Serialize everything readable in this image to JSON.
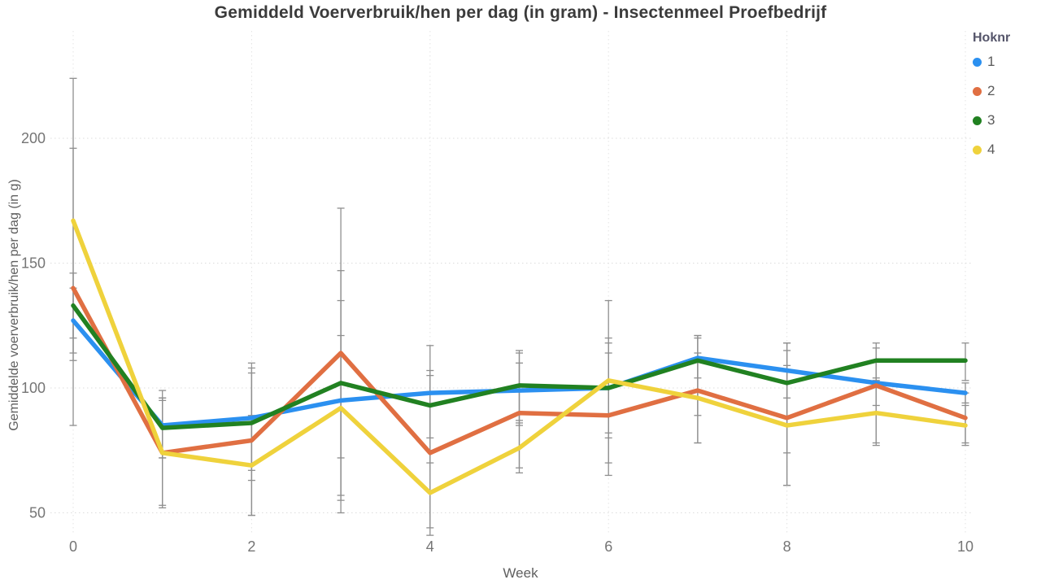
{
  "chart_data": {
    "type": "line",
    "title": "Gemiddeld Voerverbruik/hen per dag (in gram) - Insectenmeel Proefbedrijf",
    "xlabel": "Week",
    "ylabel": "Gemiddelde voerverbruik/hen per dag (in g)",
    "x": [
      0,
      1,
      2,
      3,
      4,
      5,
      6,
      7,
      8,
      9,
      10
    ],
    "x_ticks": [
      0,
      2,
      4,
      6,
      8,
      10
    ],
    "y_ticks": [
      50,
      100,
      150,
      200
    ],
    "ylim": [
      40,
      244
    ],
    "xlim": [
      0,
      10
    ],
    "grid": "dotted light-gray, horizontal at y ticks and vertical at even weeks",
    "error_bars": true,
    "error_bar_color": "#8f8f8f",
    "legend": {
      "title": "Hoknr",
      "position": "top-right"
    },
    "series": [
      {
        "name": "1",
        "color": "#2B90F0",
        "values": [
          127,
          85,
          88,
          95,
          98,
          99,
          100,
          112,
          107,
          102,
          98
        ],
        "error_low": [
          114,
          72,
          67,
          72,
          80,
          85,
          82,
          104,
          96,
          93,
          94
        ],
        "error_high": [
          140,
          99,
          106,
          121,
          117,
          114,
          118,
          121,
          118,
          111,
          102
        ]
      },
      {
        "name": "2",
        "color": "#E06F42",
        "values": [
          140,
          74,
          79,
          114,
          74,
          90,
          89,
          99,
          88,
          101,
          88
        ],
        "error_low": [
          85,
          53,
          49,
          50,
          44,
          68,
          65,
          78,
          61,
          78,
          78
        ],
        "error_high": [
          196,
          95,
          108,
          172,
          105,
          110,
          114,
          120,
          115,
          116,
          98
        ]
      },
      {
        "name": "3",
        "color": "#218121",
        "values": [
          133,
          84,
          86,
          102,
          93,
          101,
          100,
          111,
          102,
          111,
          111
        ],
        "error_low": [
          120,
          72,
          63,
          57,
          70,
          87,
          80,
          89,
          74,
          104,
          103
        ],
        "error_high": [
          146,
          96,
          110,
          147,
          107,
          115,
          120,
          121,
          118,
          118,
          118
        ]
      },
      {
        "name": "4",
        "color": "#EFD23C",
        "values": [
          167,
          74,
          69,
          92,
          58,
          76,
          103,
          96,
          85,
          90,
          85
        ],
        "error_low": [
          111,
          52,
          49,
          55,
          41,
          66,
          70,
          78,
          61,
          77,
          77
        ],
        "error_high": [
          224,
          96,
          89,
          135,
          75,
          86,
          135,
          114,
          109,
          103,
          93
        ]
      }
    ]
  },
  "text_colors": {
    "title": "#3b3b3b",
    "tick_labels": "#757575",
    "axis_titles": "#5f5f5f",
    "legend_title": "#55556a",
    "grid": "#dcdcdc"
  }
}
